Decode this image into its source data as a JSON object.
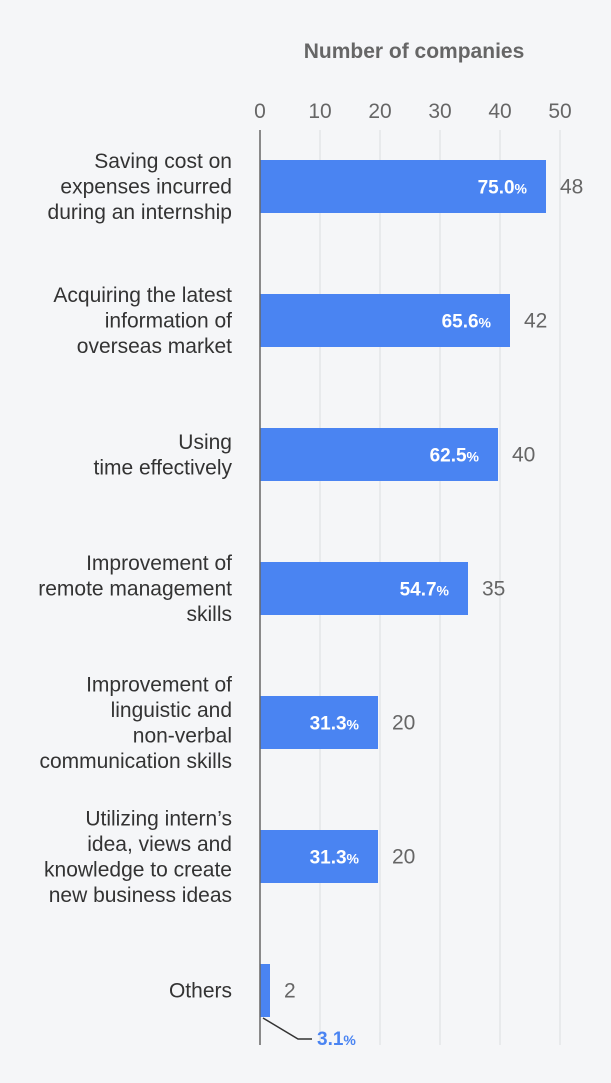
{
  "chart_data": {
    "type": "bar",
    "orientation": "horizontal",
    "title": "",
    "xlabel": "Number of companies",
    "ylabel": "",
    "xlim": [
      0,
      50
    ],
    "xticks": [
      0,
      10,
      20,
      30,
      40,
      50
    ],
    "grid": true,
    "bar_color": "#4a84f2",
    "categories": [
      "Saving cost on expenses incurred during an internship",
      "Acquiring the latest information of overseas market",
      "Using time effectively",
      "Improvement of remote management skills",
      "Improvement of linguistic and non-verbal communication skills",
      "Utilizing intern’s idea, views and knowledge to create new business ideas",
      "Others"
    ],
    "category_lines": [
      [
        "Saving cost on",
        "expenses incurred",
        "during an internship"
      ],
      [
        "Acquiring the latest",
        "information of",
        "overseas market"
      ],
      [
        "Using",
        "time effectively"
      ],
      [
        "Improvement of",
        "remote management",
        "skills"
      ],
      [
        "Improvement of",
        "linguistic and",
        "non-verbal",
        "communication skills"
      ],
      [
        "Utilizing intern’s",
        "idea, views and",
        "knowledge to create",
        "new business ideas"
      ],
      [
        "Others"
      ]
    ],
    "values": [
      48,
      42,
      40,
      35,
      20,
      20,
      2
    ],
    "percentages": [
      "75.0",
      "65.6",
      "62.5",
      "54.7",
      "31.3",
      "31.3",
      "3.1"
    ],
    "percent_unit": "%"
  }
}
